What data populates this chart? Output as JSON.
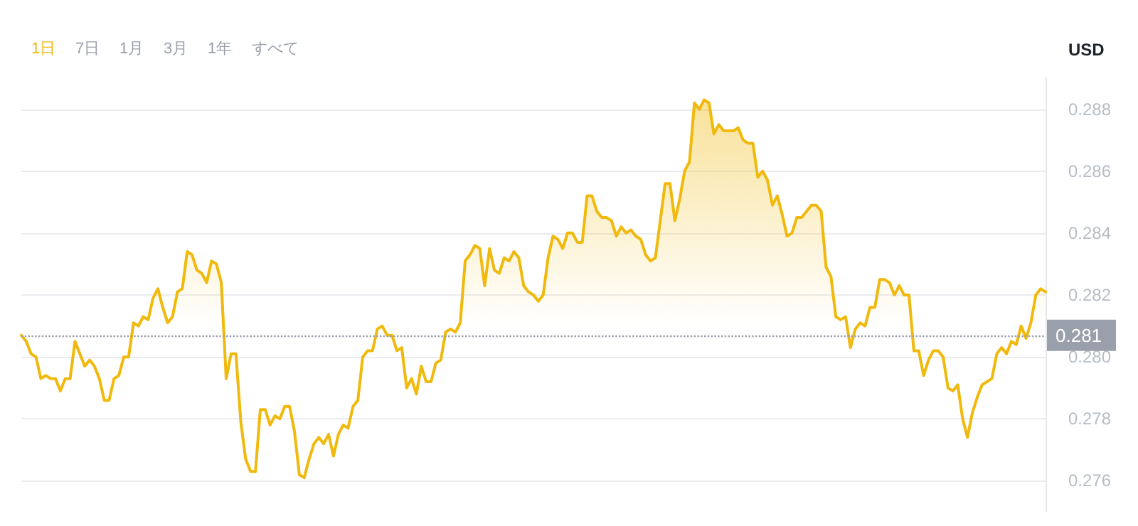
{
  "chart_data": {
    "type": "area",
    "ylabel": "USD",
    "annotations": [
      "1日",
      "7日",
      "1月",
      "3月",
      "1年",
      "すべて"
    ],
    "categories": [
      null,
      null,
      null,
      null,
      null,
      null,
      null,
      null,
      null,
      null,
      null,
      null,
      null,
      null,
      null,
      null,
      null,
      null,
      null,
      null,
      null,
      null,
      null,
      null,
      null,
      null,
      null,
      null,
      null,
      null,
      null,
      null,
      null,
      null,
      null,
      null,
      null,
      null,
      null,
      null,
      null,
      null,
      null,
      null,
      null,
      null,
      null,
      null,
      null,
      null,
      null,
      null,
      null,
      null,
      null,
      null,
      null,
      null,
      null,
      null,
      null,
      null,
      null,
      null,
      null,
      null,
      null,
      null,
      null,
      null,
      null,
      null,
      null,
      null,
      null,
      null,
      null,
      null,
      null,
      null,
      null,
      null,
      null,
      null,
      null,
      null,
      null,
      null,
      null,
      null,
      null,
      null,
      null,
      null,
      null,
      null,
      null,
      null,
      null,
      null,
      null,
      null,
      null,
      null,
      null,
      null,
      null,
      null,
      null,
      null,
      null,
      null,
      null,
      null,
      null,
      null,
      null,
      null,
      null,
      null,
      null,
      null,
      null,
      null,
      null,
      null,
      null,
      null,
      null,
      null,
      null,
      null,
      null,
      null,
      null,
      null,
      null,
      null,
      null,
      null,
      null,
      null,
      null,
      null,
      null,
      null,
      null,
      null,
      null,
      null,
      null,
      null,
      null,
      null,
      null,
      null,
      null,
      null,
      null,
      null,
      null,
      null,
      null,
      null,
      null,
      null,
      null,
      null,
      null,
      null,
      null,
      null,
      null,
      null,
      null,
      null,
      null,
      null,
      null,
      null,
      null,
      null,
      null,
      null,
      null,
      null,
      null,
      null,
      null,
      null,
      null,
      null,
      null,
      null,
      null,
      null,
      null,
      null,
      null,
      null,
      null,
      null,
      null,
      null,
      null,
      null,
      null,
      null,
      null,
      null,
      null
    ],
    "series": [
      {
        "color": "#f0b90b",
        "values": [
          0.2807,
          0.2805,
          0.2801,
          0.28,
          0.2793,
          0.2794,
          0.2793,
          0.2793,
          0.2789,
          0.2793,
          0.2793,
          0.2805,
          0.2801,
          0.2797,
          0.2799,
          0.2797,
          0.2793,
          0.2786,
          0.2786,
          0.2793,
          0.2794,
          0.28,
          0.28,
          0.2811,
          0.281,
          0.2813,
          0.2812,
          0.2819,
          0.2822,
          0.2816,
          0.2811,
          0.2813,
          0.2821,
          0.2822,
          0.2834,
          0.2833,
          0.2828,
          0.2827,
          0.2824,
          0.2831,
          0.283,
          0.2824,
          0.2793,
          0.2801,
          0.2801,
          0.2779,
          0.2767,
          0.2763,
          0.2763,
          0.2783,
          0.2783,
          0.2778,
          0.2781,
          0.278,
          0.2784,
          0.2784,
          0.2776,
          0.2762,
          0.2761,
          0.2767,
          0.2772,
          0.2774,
          0.2772,
          0.2775,
          0.2768,
          0.2775,
          0.2778,
          0.2777,
          0.2784,
          0.2786,
          0.28,
          0.2802,
          0.2802,
          0.2809,
          0.281,
          0.2807,
          0.2807,
          0.2802,
          0.2803,
          0.279,
          0.2793,
          0.2788,
          0.2797,
          0.2792,
          0.2792,
          0.2798,
          0.2799,
          0.2808,
          0.2809,
          0.2808,
          0.2811,
          0.2831,
          0.2833,
          0.2836,
          0.2835,
          0.2823,
          0.2835,
          0.2828,
          0.2827,
          0.2832,
          0.2831,
          0.2834,
          0.2832,
          0.2823,
          0.2821,
          0.282,
          0.2818,
          0.282,
          0.2832,
          0.2839,
          0.2838,
          0.2835,
          0.284,
          0.284,
          0.2837,
          0.2837,
          0.2852,
          0.2852,
          0.2847,
          0.2845,
          0.2845,
          0.2844,
          0.2839,
          0.2842,
          0.284,
          0.2841,
          0.2839,
          0.2838,
          0.2833,
          0.2831,
          0.2832,
          0.2844,
          0.2856,
          0.2856,
          0.2844,
          0.2851,
          0.286,
          0.2863,
          0.2882,
          0.288,
          0.2883,
          0.2882,
          0.2872,
          0.2875,
          0.2873,
          0.2873,
          0.2873,
          0.2874,
          0.287,
          0.2869,
          0.2869,
          0.2858,
          0.286,
          0.2857,
          0.2849,
          0.2852,
          0.2846,
          0.2839,
          0.284,
          0.2845,
          0.2845,
          0.2847,
          0.2849,
          0.2849,
          0.2847,
          0.2829,
          0.2826,
          0.2813,
          0.2812,
          0.2813,
          0.2803,
          0.2809,
          0.2811,
          0.281,
          0.2816,
          0.2816,
          0.2825,
          0.2825,
          0.2824,
          0.282,
          0.2823,
          0.282,
          0.282,
          0.2802,
          0.2802,
          0.2794,
          0.2799,
          0.2802,
          0.2802,
          0.28,
          0.279,
          0.2789,
          0.2791,
          0.278,
          0.2774,
          0.2782,
          0.2787,
          0.2791,
          0.2792,
          0.2793,
          0.2801,
          0.2803,
          0.2801,
          0.2805,
          0.2804,
          0.281,
          0.2806,
          0.2811,
          0.282,
          0.2822,
          0.2821
        ]
      }
    ],
    "ylim": [
      0.275,
      0.289
    ],
    "yticks": [
      {
        "value": 0.276,
        "label": "0.276"
      },
      {
        "value": 0.278,
        "label": "0.278"
      },
      {
        "value": 0.28,
        "label": "0.280"
      },
      {
        "value": 0.282,
        "label": "0.282"
      },
      {
        "value": 0.284,
        "label": "0.284"
      },
      {
        "value": 0.286,
        "label": "0.286"
      },
      {
        "value": 0.288,
        "label": "0.288"
      }
    ],
    "ref_lines": [
      {
        "axis": "y",
        "value": 0.2807,
        "label": "0.281",
        "color": "#9aa0ab",
        "line_style": "dotted"
      }
    ],
    "grid": "y",
    "marker": "none"
  }
}
